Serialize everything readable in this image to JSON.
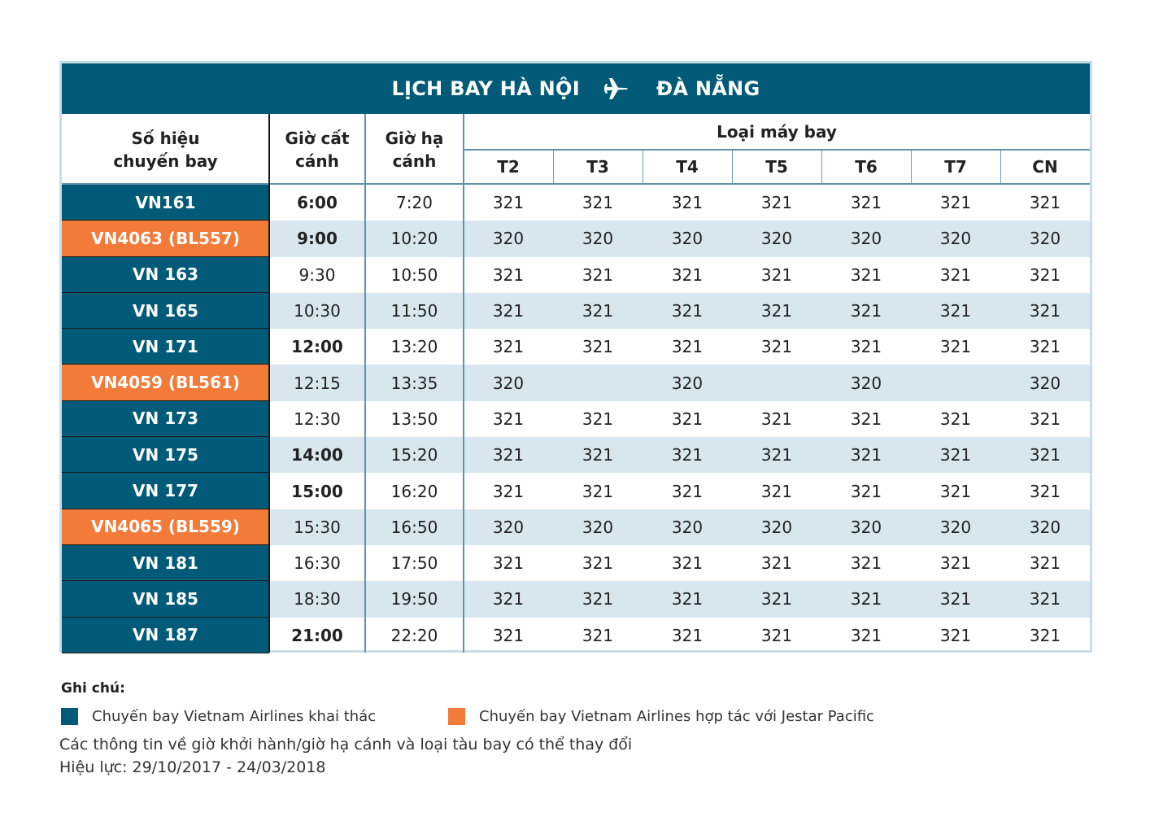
{
  "title": {
    "from": "LỊCH BAY HÀ NỘI",
    "to": "ĐÀ NẴNG",
    "icon": "airplane-icon"
  },
  "headers": {
    "flight_number": "Số hiệu chuyến bay",
    "departure": "Giờ cất cánh",
    "arrival": "Giờ hạ cánh",
    "aircraft_type": "Loại máy bay",
    "days": [
      "T2",
      "T3",
      "T4",
      "T5",
      "T6",
      "T7",
      "CN"
    ]
  },
  "colors": {
    "vietnam_airlines": "#005a78",
    "jetstar_codeshare": "#f37b3a",
    "row_stripe": "#d8e6ed"
  },
  "rows": [
    {
      "flight": "VN161",
      "operator": "vn",
      "dep": "6:00",
      "dep_bold": true,
      "arr": "7:20",
      "aircraft": [
        "321",
        "321",
        "321",
        "321",
        "321",
        "321",
        "321"
      ]
    },
    {
      "flight": "VN4063 (BL557)",
      "operator": "jetstar",
      "dep": "9:00",
      "dep_bold": true,
      "arr": "10:20",
      "aircraft": [
        "320",
        "320",
        "320",
        "320",
        "320",
        "320",
        "320"
      ]
    },
    {
      "flight": "VN 163",
      "operator": "vn",
      "dep": "9:30",
      "dep_bold": false,
      "arr": "10:50",
      "aircraft": [
        "321",
        "321",
        "321",
        "321",
        "321",
        "321",
        "321"
      ]
    },
    {
      "flight": "VN 165",
      "operator": "vn",
      "dep": "10:30",
      "dep_bold": false,
      "arr": "11:50",
      "aircraft": [
        "321",
        "321",
        "321",
        "321",
        "321",
        "321",
        "321"
      ]
    },
    {
      "flight": "VN 171",
      "operator": "vn",
      "dep": "12:00",
      "dep_bold": true,
      "arr": "13:20",
      "aircraft": [
        "321",
        "321",
        "321",
        "321",
        "321",
        "321",
        "321"
      ]
    },
    {
      "flight": "VN4059 (BL561)",
      "operator": "jetstar",
      "dep": "12:15",
      "dep_bold": false,
      "arr": "13:35",
      "aircraft": [
        "320",
        "",
        "320",
        "",
        "320",
        "",
        "320"
      ]
    },
    {
      "flight": "VN 173",
      "operator": "vn",
      "dep": "12:30",
      "dep_bold": false,
      "arr": "13:50",
      "aircraft": [
        "321",
        "321",
        "321",
        "321",
        "321",
        "321",
        "321"
      ]
    },
    {
      "flight": "VN 175",
      "operator": "vn",
      "dep": "14:00",
      "dep_bold": true,
      "arr": "15:20",
      "aircraft": [
        "321",
        "321",
        "321",
        "321",
        "321",
        "321",
        "321"
      ]
    },
    {
      "flight": "VN 177",
      "operator": "vn",
      "dep": "15:00",
      "dep_bold": true,
      "arr": "16:20",
      "aircraft": [
        "321",
        "321",
        "321",
        "321",
        "321",
        "321",
        "321"
      ]
    },
    {
      "flight": "VN4065 (BL559)",
      "operator": "jetstar",
      "dep": "15:30",
      "dep_bold": false,
      "arr": "16:50",
      "aircraft": [
        "320",
        "320",
        "320",
        "320",
        "320",
        "320",
        "320"
      ]
    },
    {
      "flight": "VN 181",
      "operator": "vn",
      "dep": "16:30",
      "dep_bold": false,
      "arr": "17:50",
      "aircraft": [
        "321",
        "321",
        "321",
        "321",
        "321",
        "321",
        "321"
      ]
    },
    {
      "flight": "VN 185",
      "operator": "vn",
      "dep": "18:30",
      "dep_bold": false,
      "arr": "19:50",
      "aircraft": [
        "321",
        "321",
        "321",
        "321",
        "321",
        "321",
        "321"
      ]
    },
    {
      "flight": "VN 187",
      "operator": "vn",
      "dep": "21:00",
      "dep_bold": true,
      "arr": "22:20",
      "aircraft": [
        "321",
        "321",
        "321",
        "321",
        "321",
        "321",
        "321"
      ]
    }
  ],
  "notes": {
    "title": "Ghi chú:",
    "legend": [
      {
        "label": "Chuyến bay Vietnam Airlines khai thác",
        "color": "#005a78"
      },
      {
        "label": "Chuyến bay Vietnam Airlines hợp tác với Jestar Pacific",
        "color": "#f37b3a"
      }
    ],
    "disclaimer": "Các thông tin về giờ khởi hành/giờ hạ cánh và loại tàu bay có thể thay đổi",
    "validity": "Hiệu lực:  29/10/2017 - 24/03/2018"
  }
}
